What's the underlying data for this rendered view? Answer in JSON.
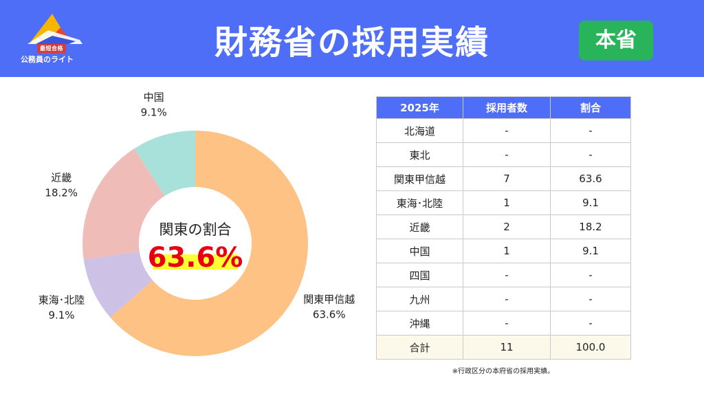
{
  "header": {
    "title": "財務省の採用実績",
    "scope_badge": "本省",
    "logo_badge": "最短合格",
    "logo_text": "公務員のライト"
  },
  "colors": {
    "header_bg": "#4f6ef7",
    "badge_green": "#29b35a",
    "highlight_red": "#e60012",
    "highlight_yellow": "#ffff33"
  },
  "chart_data": {
    "type": "pie",
    "style": "donut",
    "center_title": "関東の割合",
    "center_value": "63.6%",
    "slices": [
      {
        "label": "関東甲信越",
        "value_label": "63.6%",
        "value": 63.6,
        "color": "#fdc284"
      },
      {
        "label": "東海･北陸",
        "value_label": "9.1%",
        "value": 9.1,
        "color": "#cdc1e6"
      },
      {
        "label": "近畿",
        "value_label": "18.2%",
        "value": 18.2,
        "color": "#efbcb8"
      },
      {
        "label": "中国",
        "value_label": "9.1%",
        "value": 9.1,
        "color": "#a8e0da"
      }
    ]
  },
  "table": {
    "headers": [
      "2025年",
      "採用者数",
      "割合"
    ],
    "rows": [
      [
        "北海道",
        "-",
        "-"
      ],
      [
        "東北",
        "-",
        "-"
      ],
      [
        "関東甲信越",
        "7",
        "63.6"
      ],
      [
        "東海･北陸",
        "1",
        "9.1"
      ],
      [
        "近畿",
        "2",
        "18.2"
      ],
      [
        "中国",
        "1",
        "9.1"
      ],
      [
        "四国",
        "-",
        "-"
      ],
      [
        "九州",
        "-",
        "-"
      ],
      [
        "沖縄",
        "-",
        "-"
      ]
    ],
    "total": [
      "合計",
      "11",
      "100.0"
    ]
  },
  "footnote": "※行政区分の本府省の採用実績。"
}
